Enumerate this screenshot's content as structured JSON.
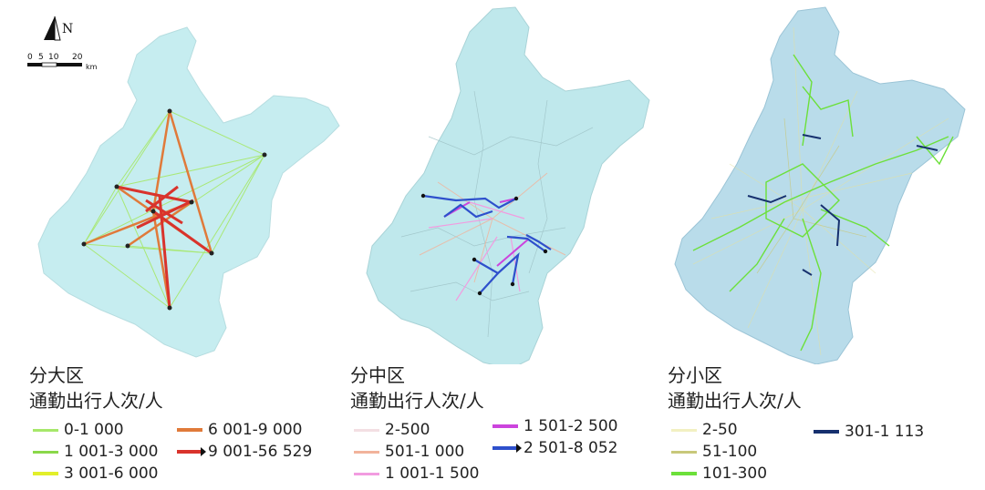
{
  "compass": {
    "north_label": "N",
    "scale_ticks": [
      "0",
      "5",
      "10",
      "20"
    ],
    "scale_unit": "km"
  },
  "maps": [
    {
      "id": "large-district",
      "title": "分大区",
      "subtitle": "通勤出行人次/人",
      "legend": [
        {
          "label": "0-1 000",
          "color": "#a6e86a"
        },
        {
          "label": "1 001-3 000",
          "color": "#8ad84a"
        },
        {
          "label": "3 001-6 000",
          "color": "#e2ef2a"
        },
        {
          "label": "6 001-9 000",
          "color": "#e07a3a"
        },
        {
          "label": "9 001-56 529",
          "color": "#d9332c"
        }
      ]
    },
    {
      "id": "medium-district",
      "title": "分中区",
      "subtitle": "通勤出行人次/人",
      "legend": [
        {
          "label": "2-500",
          "color": "#f3dfe3"
        },
        {
          "label": "501-1 000",
          "color": "#f2b39b"
        },
        {
          "label": "1 001-1 500",
          "color": "#f29ce0"
        },
        {
          "label": "1 501-2 500",
          "color": "#cc44dd"
        },
        {
          "label": "2 501-8 052",
          "color": "#2e50cc"
        }
      ]
    },
    {
      "id": "small-district",
      "title": "分小区",
      "subtitle": "通勤出行人次/人",
      "legend": [
        {
          "label": "2-50",
          "color": "#f2f0c2"
        },
        {
          "label": "51-100",
          "color": "#c8c87a"
        },
        {
          "label": "101-300",
          "color": "#6ce03a"
        },
        {
          "label": "301-1 113",
          "color": "#16306e"
        }
      ]
    }
  ],
  "colors": {
    "region_fill_1": "#c6edf0",
    "region_fill_2": "#bfe8ec",
    "region_fill_3": "#b9dcea"
  }
}
